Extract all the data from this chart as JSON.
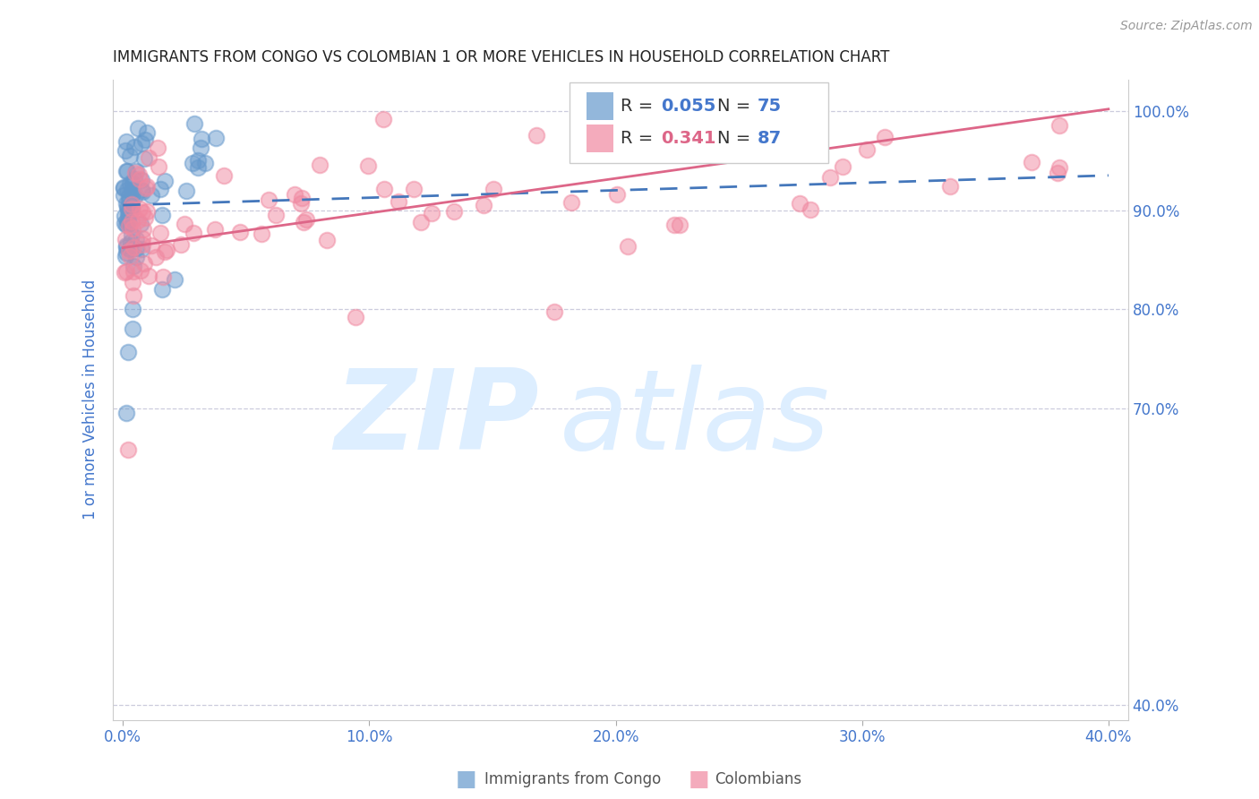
{
  "title": "IMMIGRANTS FROM CONGO VS COLOMBIAN 1 OR MORE VEHICLES IN HOUSEHOLD CORRELATION CHART",
  "source": "Source: ZipAtlas.com",
  "ylabel": "1 or more Vehicles in Household",
  "congo_color": "#6699cc",
  "colombian_color": "#f088a0",
  "trendline_congo_color": "#4477bb",
  "trendline_colombian_color": "#dd6688",
  "background_color": "#ffffff",
  "grid_color": "#ccccdd",
  "title_color": "#222222",
  "axis_label_color": "#4477cc",
  "tick_color": "#4477cc",
  "watermark_color": "#ddeeff",
  "xlim": [
    -0.004,
    0.408
  ],
  "ylim": [
    0.385,
    1.032
  ],
  "x_ticks": [
    0.0,
    0.1,
    0.2,
    0.3,
    0.4
  ],
  "x_tick_labels": [
    "0.0%",
    "10.0%",
    "20.0%",
    "30.0%",
    "40.0%"
  ],
  "y_ticks": [
    0.4,
    0.7,
    0.8,
    0.9,
    1.0
  ],
  "y_tick_labels": [
    "40.0%",
    "70.0%",
    "80.0%",
    "90.0%",
    "100.0%"
  ],
  "congo_trend": [
    0.0,
    0.4,
    0.905,
    0.935
  ],
  "colombian_trend": [
    0.0,
    0.4,
    0.862,
    1.002
  ],
  "legend_r1": "0.055",
  "legend_n1": "75",
  "legend_r2": "0.341",
  "legend_n2": "87",
  "legend_r1_color": "#4477cc",
  "legend_r2_color": "#dd6688",
  "legend_n_color": "#4477cc"
}
